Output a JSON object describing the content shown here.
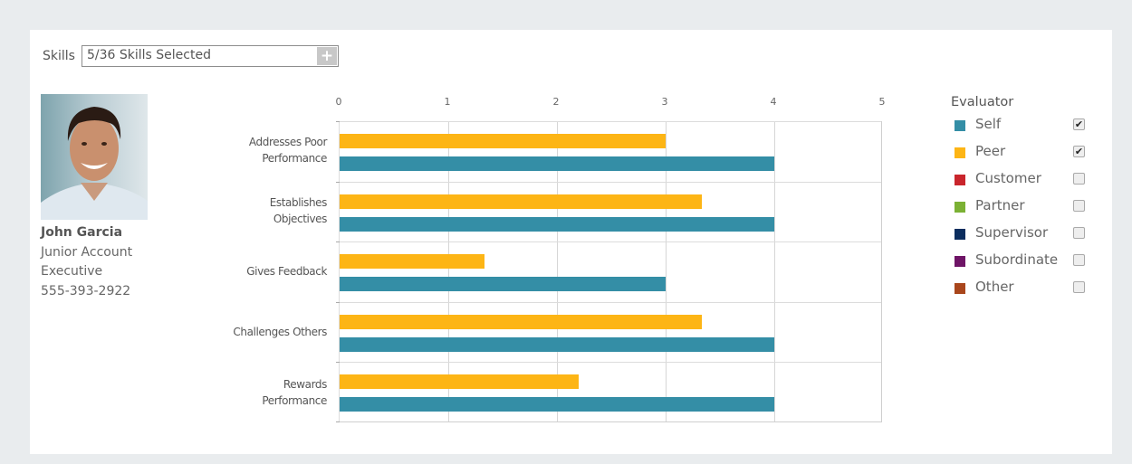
{
  "skills": {
    "label": "Skills",
    "value": "5/36 Skills Selected",
    "add_button": "+"
  },
  "person": {
    "photo": "profile-photo",
    "name": "John Garcia",
    "title_line1": "Junior Account",
    "title_line2": "Executive",
    "phone": "555-393-2922"
  },
  "legend": {
    "title": "Evaluator",
    "items": [
      {
        "label": "Self",
        "color": "#348ea6",
        "checked": true
      },
      {
        "label": "Peer",
        "color": "#fdb515",
        "checked": true
      },
      {
        "label": "Customer",
        "color": "#c9252c",
        "checked": false
      },
      {
        "label": "Partner",
        "color": "#7bb134",
        "checked": false
      },
      {
        "label": "Supervisor",
        "color": "#0b2d5e",
        "checked": false
      },
      {
        "label": "Subordinate",
        "color": "#6e1466",
        "checked": false
      },
      {
        "label": "Other",
        "color": "#a9461c",
        "checked": false
      }
    ]
  },
  "chart_data": {
    "type": "bar",
    "orientation": "horizontal",
    "title": "",
    "xlabel": "",
    "ylabel": "",
    "xlim": [
      0,
      5
    ],
    "x_ticks": [
      "0",
      "1",
      "2",
      "3",
      "4",
      "5"
    ],
    "x_axis_position": "top",
    "grid": true,
    "legend_title": "Evaluator",
    "legend_position": "right",
    "categories": [
      "Addresses Poor Performance",
      "Establishes Objectives",
      "Gives Feedback",
      "Challenges Others",
      "Rewards Performance"
    ],
    "category_labels": [
      [
        "Addresses Poor",
        "Performance"
      ],
      [
        "Establishes",
        "Objectives"
      ],
      [
        "Gives Feedback"
      ],
      [
        "Challenges Others"
      ],
      [
        "Rewards",
        "Performance"
      ]
    ],
    "series": [
      {
        "name": "Peer",
        "color": "#fdb515",
        "values": [
          3.0,
          3.33,
          1.33,
          3.33,
          2.2
        ]
      },
      {
        "name": "Self",
        "color": "#348ea6",
        "values": [
          4.0,
          4.0,
          3.0,
          4.0,
          4.0
        ]
      }
    ]
  }
}
